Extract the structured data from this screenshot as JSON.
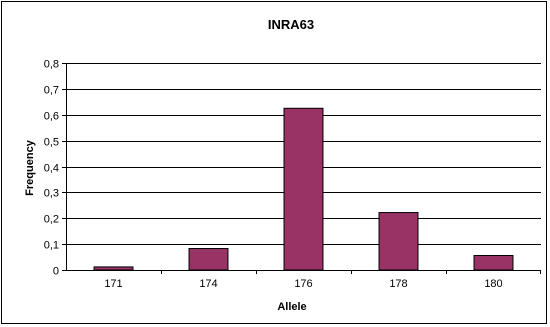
{
  "chart_data": {
    "type": "bar",
    "title": "INRA63",
    "xlabel": "Allele",
    "ylabel": "Frequency",
    "categories": [
      "171",
      "174",
      "176",
      "178",
      "180"
    ],
    "values": [
      0.012,
      0.083,
      0.625,
      0.222,
      0.056
    ],
    "ylim": [
      0,
      0.8
    ],
    "yticks": [
      "0",
      "0,1",
      "0,2",
      "0,3",
      "0,4",
      "0,5",
      "0,6",
      "0,7",
      "0,8"
    ],
    "grid": true,
    "legend": "none",
    "bar_color": "#993366",
    "bar_outline": "#000000"
  }
}
